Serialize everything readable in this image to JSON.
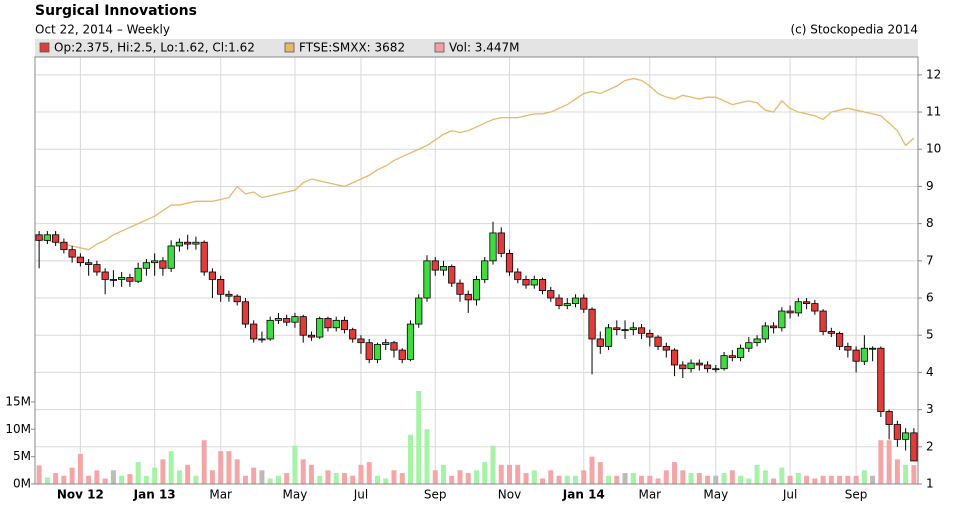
{
  "chart_data": {
    "type": "candlestick",
    "title": "Surgical Innovations",
    "subtitle": "Oct 22, 2014  – Weekly",
    "credit": "(c) Stockopedia 2014",
    "categories": [
      null,
      null,
      null,
      null,
      null,
      "Nov 12",
      null,
      null,
      null,
      null,
      null,
      null,
      null,
      null,
      "Jan 13",
      null,
      null,
      null,
      null,
      null,
      null,
      null,
      "Mar",
      null,
      null,
      null,
      null,
      null,
      null,
      null,
      null,
      "May",
      null,
      null,
      null,
      null,
      null,
      null,
      null,
      "Jul",
      null,
      null,
      null,
      null,
      null,
      null,
      null,
      null,
      "Sep",
      null,
      null,
      null,
      null,
      null,
      null,
      null,
      null,
      "Nov",
      null,
      null,
      null,
      null,
      null,
      null,
      null,
      null,
      "Jan 14",
      null,
      null,
      null,
      null,
      null,
      null,
      null,
      "Mar",
      null,
      null,
      null,
      null,
      null,
      null,
      null,
      "May",
      null,
      null,
      null,
      null,
      null,
      null,
      null,
      null,
      "Jul",
      null,
      null,
      null,
      null,
      null,
      null,
      null,
      "Sep",
      null,
      null,
      null,
      null,
      null,
      null,
      null
    ],
    "series": [
      {
        "name": "Op:2.375, Hi:2.5, Lo:1.62, Cl:1.62",
        "type": "candlestick",
        "color": "#e03c3c",
        "up_color": "#3fdc3f",
        "down_color": "#e03c3c",
        "open": [
          7.7,
          7.55,
          7.7,
          7.5,
          7.3,
          7.1,
          6.95,
          6.9,
          6.7,
          6.5,
          6.5,
          6.55,
          6.45,
          6.8,
          6.95,
          7.0,
          6.8,
          7.4,
          7.5,
          7.45,
          7.5,
          6.7,
          6.5,
          6.1,
          6.05,
          5.9,
          5.3,
          4.9,
          4.9,
          5.4,
          5.45,
          5.35,
          5.5,
          5.0,
          4.95,
          5.45,
          5.2,
          5.4,
          5.15,
          4.9,
          4.8,
          4.35,
          4.75,
          4.8,
          4.6,
          4.35,
          5.3,
          6.0,
          7.0,
          6.75,
          6.85,
          6.4,
          6.1,
          5.95,
          6.5,
          7.0,
          7.75,
          7.2,
          6.7,
          6.5,
          6.35,
          6.5,
          6.2,
          6.0,
          5.8,
          5.85,
          6.0,
          5.7,
          4.9,
          4.7,
          5.2,
          5.15,
          5.15,
          5.2,
          5.05,
          4.95,
          4.7,
          4.6,
          4.2,
          4.1,
          4.25,
          4.2,
          4.1,
          4.1,
          4.45,
          4.4,
          4.65,
          4.8,
          4.9,
          5.25,
          5.2,
          5.65,
          5.6,
          5.9,
          5.85,
          5.65,
          5.1,
          5.05,
          4.7,
          4.6,
          4.3,
          4.65,
          4.65,
          2.95,
          2.6,
          2.2,
          2.375
        ],
        "high": [
          7.8,
          7.8,
          7.8,
          7.6,
          7.4,
          7.2,
          7.05,
          7.0,
          6.8,
          6.75,
          6.7,
          6.65,
          6.95,
          7.05,
          7.2,
          7.1,
          7.55,
          7.6,
          7.7,
          7.65,
          7.55,
          6.8,
          6.6,
          6.2,
          6.1,
          6.0,
          5.4,
          5.1,
          5.5,
          5.6,
          5.55,
          5.6,
          5.55,
          5.1,
          5.5,
          5.5,
          5.5,
          5.5,
          5.2,
          5.0,
          4.9,
          4.8,
          4.9,
          4.85,
          4.65,
          5.4,
          6.1,
          7.15,
          7.1,
          7.0,
          6.9,
          6.5,
          6.2,
          6.6,
          7.1,
          8.05,
          7.9,
          7.3,
          6.8,
          6.6,
          6.6,
          6.55,
          6.3,
          6.1,
          6.0,
          6.1,
          6.1,
          5.75,
          5.1,
          5.3,
          5.4,
          5.4,
          5.35,
          5.3,
          5.15,
          5.0,
          4.8,
          4.65,
          4.3,
          4.35,
          4.35,
          4.3,
          4.2,
          4.55,
          4.6,
          4.75,
          4.95,
          5.0,
          5.35,
          5.35,
          5.75,
          5.8,
          6.0,
          6.0,
          5.95,
          5.7,
          5.2,
          5.1,
          4.8,
          4.7,
          5.0,
          4.7,
          4.7,
          3.0,
          2.7,
          2.5,
          2.5
        ],
        "low": [
          6.8,
          7.45,
          7.4,
          7.2,
          6.95,
          6.85,
          6.6,
          6.6,
          6.1,
          6.3,
          6.3,
          6.3,
          6.4,
          6.6,
          6.6,
          6.6,
          6.7,
          7.25,
          7.3,
          7.3,
          6.6,
          6.0,
          5.9,
          5.9,
          5.8,
          5.2,
          4.8,
          4.8,
          4.85,
          5.3,
          5.25,
          5.2,
          4.8,
          4.85,
          4.9,
          5.1,
          5.1,
          5.05,
          4.8,
          4.5,
          4.25,
          4.25,
          4.6,
          4.4,
          4.25,
          4.3,
          5.2,
          5.9,
          6.6,
          6.6,
          6.3,
          5.9,
          5.6,
          5.8,
          6.4,
          6.9,
          7.1,
          6.6,
          6.4,
          6.25,
          6.25,
          6.1,
          5.9,
          5.7,
          5.7,
          5.75,
          5.6,
          3.95,
          4.5,
          4.6,
          5.0,
          4.9,
          5.0,
          4.9,
          4.7,
          4.6,
          4.4,
          3.9,
          3.85,
          4.0,
          4.05,
          4.0,
          4.0,
          4.05,
          4.3,
          4.3,
          4.55,
          4.7,
          4.8,
          5.05,
          5.1,
          5.45,
          5.5,
          5.7,
          5.55,
          5.0,
          4.95,
          4.6,
          4.4,
          4.0,
          4.2,
          4.3,
          2.8,
          2.2,
          2.0,
          1.9,
          1.62
        ],
        "close": [
          7.55,
          7.7,
          7.5,
          7.3,
          7.1,
          6.95,
          6.9,
          6.7,
          6.5,
          6.5,
          6.55,
          6.45,
          6.8,
          6.95,
          7.0,
          6.8,
          7.4,
          7.5,
          7.45,
          7.5,
          6.7,
          6.5,
          6.1,
          6.05,
          5.9,
          5.3,
          4.9,
          4.9,
          5.4,
          5.45,
          5.35,
          5.5,
          5.0,
          4.95,
          5.45,
          5.2,
          5.4,
          5.15,
          4.9,
          4.8,
          4.35,
          4.75,
          4.8,
          4.6,
          4.35,
          5.3,
          6.0,
          7.0,
          6.75,
          6.85,
          6.4,
          6.1,
          5.95,
          6.5,
          7.0,
          7.75,
          7.2,
          6.7,
          6.5,
          6.35,
          6.5,
          6.2,
          6.0,
          5.8,
          5.85,
          6.0,
          5.7,
          4.9,
          4.7,
          5.2,
          5.15,
          5.15,
          5.2,
          5.05,
          4.95,
          4.7,
          4.6,
          4.2,
          4.1,
          4.25,
          4.2,
          4.1,
          4.1,
          4.45,
          4.4,
          4.65,
          4.8,
          4.9,
          5.25,
          5.2,
          5.65,
          5.6,
          5.9,
          5.85,
          5.65,
          5.1,
          5.05,
          4.7,
          4.6,
          4.3,
          4.65,
          4.65,
          2.95,
          2.6,
          2.2,
          2.375,
          1.62
        ]
      },
      {
        "name": "FTSE:SMXX: 3682",
        "type": "line",
        "color": "#e8b86a",
        "values": [
          7.6,
          7.55,
          7.5,
          7.45,
          7.4,
          7.35,
          7.3,
          7.45,
          7.55,
          7.7,
          7.8,
          7.9,
          8.0,
          8.1,
          8.2,
          8.35,
          8.5,
          8.5,
          8.55,
          8.6,
          8.6,
          8.6,
          8.65,
          8.7,
          9.0,
          8.8,
          8.85,
          8.7,
          8.75,
          8.8,
          8.85,
          8.9,
          9.1,
          9.2,
          9.15,
          9.1,
          9.05,
          9.0,
          9.1,
          9.2,
          9.3,
          9.45,
          9.55,
          9.7,
          9.8,
          9.9,
          10.0,
          10.1,
          10.25,
          10.4,
          10.5,
          10.45,
          10.5,
          10.6,
          10.7,
          10.8,
          10.85,
          10.85,
          10.85,
          10.9,
          10.95,
          10.95,
          11.0,
          11.1,
          11.2,
          11.35,
          11.5,
          11.55,
          11.5,
          11.6,
          11.7,
          11.85,
          11.9,
          11.85,
          11.7,
          11.5,
          11.4,
          11.35,
          11.45,
          11.4,
          11.35,
          11.4,
          11.4,
          11.3,
          11.2,
          11.25,
          11.3,
          11.25,
          11.05,
          11.0,
          11.3,
          11.1,
          11.0,
          10.95,
          10.9,
          10.8,
          11.0,
          11.05,
          11.1,
          11.05,
          11.0,
          10.95,
          10.9,
          10.7,
          10.5,
          10.1,
          10.3
        ]
      },
      {
        "name": "Vol: 3.447M",
        "type": "bar",
        "axis": "y2",
        "color": "#f4a0a0",
        "up_color": "#a6f2a6",
        "down_color": "#f4a6a6",
        "flat_color": "#bbbbbb",
        "values": [
          3.4,
          1.2,
          2.0,
          1.5,
          3.0,
          5.5,
          1.5,
          2.5,
          1.0,
          2.5,
          1.5,
          1.8,
          4.0,
          1.5,
          3.0,
          4.5,
          6.0,
          2.5,
          3.5,
          1.5,
          8.0,
          2.5,
          6.0,
          6.0,
          4.5,
          1.5,
          3.0,
          2.5,
          1.0,
          1.5,
          2.0,
          7.0,
          4.5,
          3.5,
          1.5,
          2.5,
          2.0,
          2.0,
          1.5,
          3.5,
          4.0,
          1.5,
          1.0,
          2.5,
          2.0,
          9.0,
          17.0,
          10.0,
          2.5,
          3.5,
          1.5,
          2.5,
          2.0,
          2.5,
          4.0,
          7.0,
          3.5,
          3.5,
          3.5,
          2.0,
          2.5,
          1.0,
          2.5,
          1.5,
          1.5,
          1.5,
          2.5,
          5.0,
          4.0,
          1.5,
          1.5,
          2.0,
          2.0,
          1.5,
          1.5,
          1.0,
          2.5,
          4.0,
          2.5,
          2.0,
          2.0,
          1.5,
          1.5,
          2.0,
          2.5,
          1.5,
          1.0,
          3.5,
          2.5,
          1.0,
          3.0,
          1.5,
          2.0,
          1.5,
          1.0,
          1.5,
          1.5,
          1.5,
          1.5,
          1.5,
          2.5,
          1.5,
          8.0,
          8.0,
          4.5,
          3.5,
          3.447
        ]
      }
    ],
    "ylim": [
      1,
      12.48
    ],
    "yticks": [
      1,
      2,
      3,
      4,
      5,
      6,
      7,
      8,
      9,
      10,
      11,
      12
    ],
    "y2lim": [
      0,
      78
    ],
    "y2ticks": [
      {
        "value": 0,
        "label": "0M"
      },
      {
        "value": 5,
        "label": "5M"
      },
      {
        "value": 10,
        "label": "10M"
      },
      {
        "value": 15,
        "label": "15M"
      }
    ],
    "grid": true
  }
}
